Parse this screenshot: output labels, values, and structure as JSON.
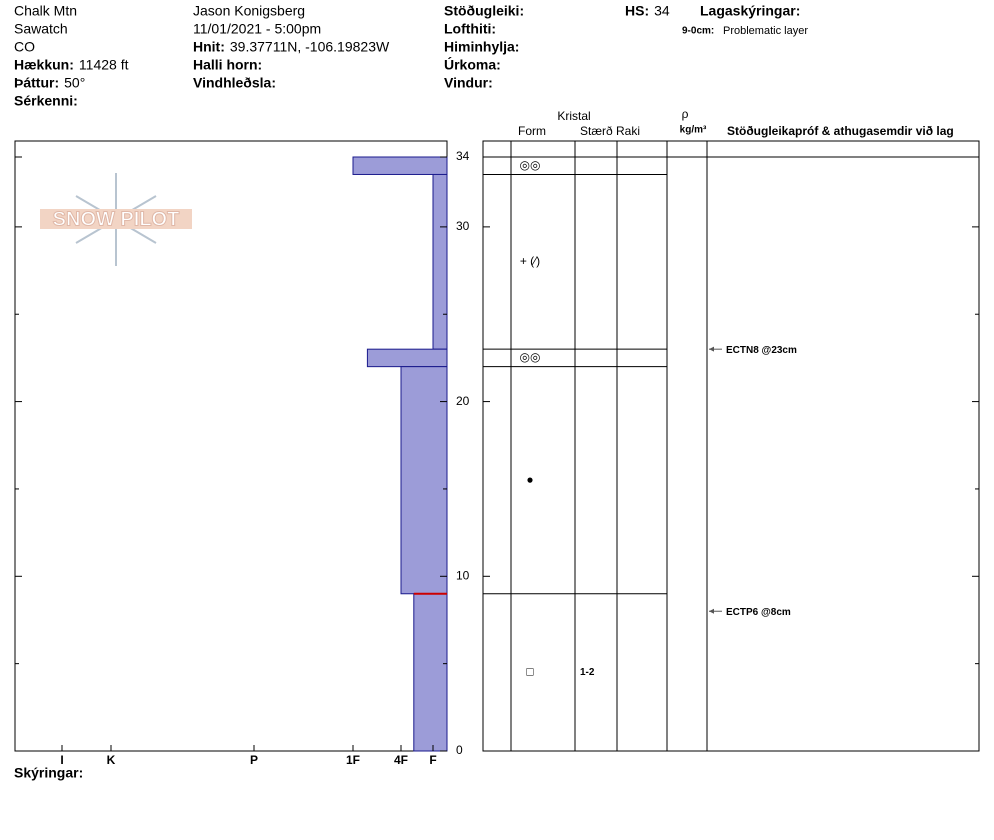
{
  "header": {
    "location": "Chalk Mtn",
    "range": "Sawatch",
    "state": "CO",
    "elevation_label": "Hækkun:",
    "elevation": "11428 ft",
    "aspect_label": "Þáttur:",
    "aspect": "50°",
    "features_label": "Sérkenni:",
    "observer": "Jason Konigsberg",
    "datetime": "11/01/2021 - 5:00pm",
    "coords_label": "Hnit:",
    "coords": "39.37711N, -106.19823W",
    "slope_label": "Halli horn:",
    "wind_loading_label": "Vindhleðsla:",
    "stability_label": "Stöðugleiki:",
    "air_temp_label": "Lofthiti:",
    "sky_label": "Himinhylja:",
    "precip_label": "Úrkoma:",
    "wind_label": "Vindur:",
    "hs_label": "HS:",
    "hs": 34,
    "legend_label": "Lagaskýringar:",
    "legend_range": "9-0cm:",
    "legend_text": "Problematic layer"
  },
  "columns": {
    "crystal": "Kristal",
    "form": "Form",
    "size": "Stærð",
    "moisture": "Raki",
    "density_symbol": "ρ",
    "density_unit": "kg/m³",
    "tests": "Stöðugleikapróf & athugasemdir við lag"
  },
  "logo": "SNOW PILOT",
  "remarks_label": "Skýringar:",
  "chart_data": {
    "type": "snow-profile",
    "ylim": [
      0,
      34
    ],
    "yticks": [
      0,
      10,
      20,
      30,
      34
    ],
    "minor_yticks": [
      5,
      15,
      25
    ],
    "hardness_ticks": [
      {
        "value": 6,
        "label": "I"
      },
      {
        "value": 5,
        "label": "K"
      },
      {
        "value": 4,
        "label": "P"
      },
      {
        "value": 3,
        "label": "1F"
      },
      {
        "value": 2,
        "label": "4F"
      },
      {
        "value": 1,
        "label": "F"
      }
    ],
    "color": "#9c9cd8",
    "layers": [
      {
        "top": 34,
        "bottom": 33,
        "hardness": 3,
        "form": "◎◎"
      },
      {
        "top": 33,
        "bottom": 23,
        "hardness": 1,
        "form": "+ (⁄)"
      },
      {
        "top": 23,
        "bottom": 22,
        "hardness": 2.7,
        "form": "◎◎"
      },
      {
        "top": 22,
        "bottom": 9,
        "hardness": 2,
        "form": "●"
      },
      {
        "top": 9,
        "bottom": 0,
        "hardness": 1.6,
        "form": "□",
        "size": "1-2"
      }
    ],
    "problem_layer": {
      "top": 9,
      "bottom": 0,
      "color": "#cc0000"
    },
    "tests": [
      {
        "depth": 23,
        "label": "ECTN8 @23cm"
      },
      {
        "depth": 8,
        "label": "ECTP6 @8cm"
      }
    ]
  }
}
